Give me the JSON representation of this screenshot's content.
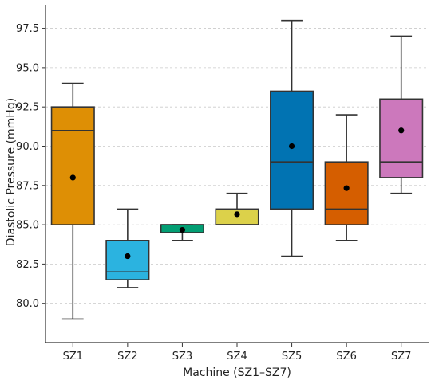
{
  "chart_data": {
    "type": "box",
    "xlabel": "Machine (SZ1–SZ7)",
    "ylabel": "Diastolic Pressure (mmHg)",
    "ylim": [
      77.5,
      99.0
    ],
    "yticks": [
      80.0,
      82.5,
      85.0,
      87.5,
      90.0,
      92.5,
      95.0,
      97.5
    ],
    "ytick_labels": [
      "80.0",
      "82.5",
      "85.0",
      "87.5",
      "90.0",
      "92.5",
      "95.0",
      "97.5"
    ],
    "grid": "horizontal dashed",
    "categories": [
      "SZ1",
      "SZ2",
      "SZ3",
      "SZ4",
      "SZ5",
      "SZ6",
      "SZ7"
    ],
    "boxes": [
      {
        "label": "SZ1",
        "whisker_low": 79.0,
        "q1": 85.0,
        "median": 91.0,
        "q3": 92.5,
        "whisker_high": 94.0,
        "mean": 88.0,
        "color": "#de8f05"
      },
      {
        "label": "SZ2",
        "whisker_low": 81.0,
        "q1": 81.5,
        "median": 82.0,
        "q3": 84.0,
        "whisker_high": 86.0,
        "mean": 83.0,
        "color": "#2bb3e0"
      },
      {
        "label": "SZ3",
        "whisker_low": 84.0,
        "q1": 84.5,
        "median": 85.0,
        "q3": 85.0,
        "whisker_high": 85.0,
        "mean": 84.67,
        "color": "#029e73"
      },
      {
        "label": "SZ4",
        "whisker_low": 85.0,
        "q1": 85.0,
        "median": 85.0,
        "q3": 86.0,
        "whisker_high": 87.0,
        "mean": 85.67,
        "color": "#dcd14a"
      },
      {
        "label": "SZ5",
        "whisker_low": 83.0,
        "q1": 86.0,
        "median": 89.0,
        "q3": 93.5,
        "whisker_high": 98.0,
        "mean": 90.0,
        "color": "#0173b2"
      },
      {
        "label": "SZ6",
        "whisker_low": 84.0,
        "q1": 85.0,
        "median": 86.0,
        "q3": 89.0,
        "whisker_high": 92.0,
        "mean": 87.33,
        "color": "#d55e00"
      },
      {
        "label": "SZ7",
        "whisker_low": 87.0,
        "q1": 88.0,
        "median": 89.0,
        "q3": 93.0,
        "whisker_high": 97.0,
        "mean": 91.0,
        "color": "#cc78bc"
      }
    ]
  }
}
